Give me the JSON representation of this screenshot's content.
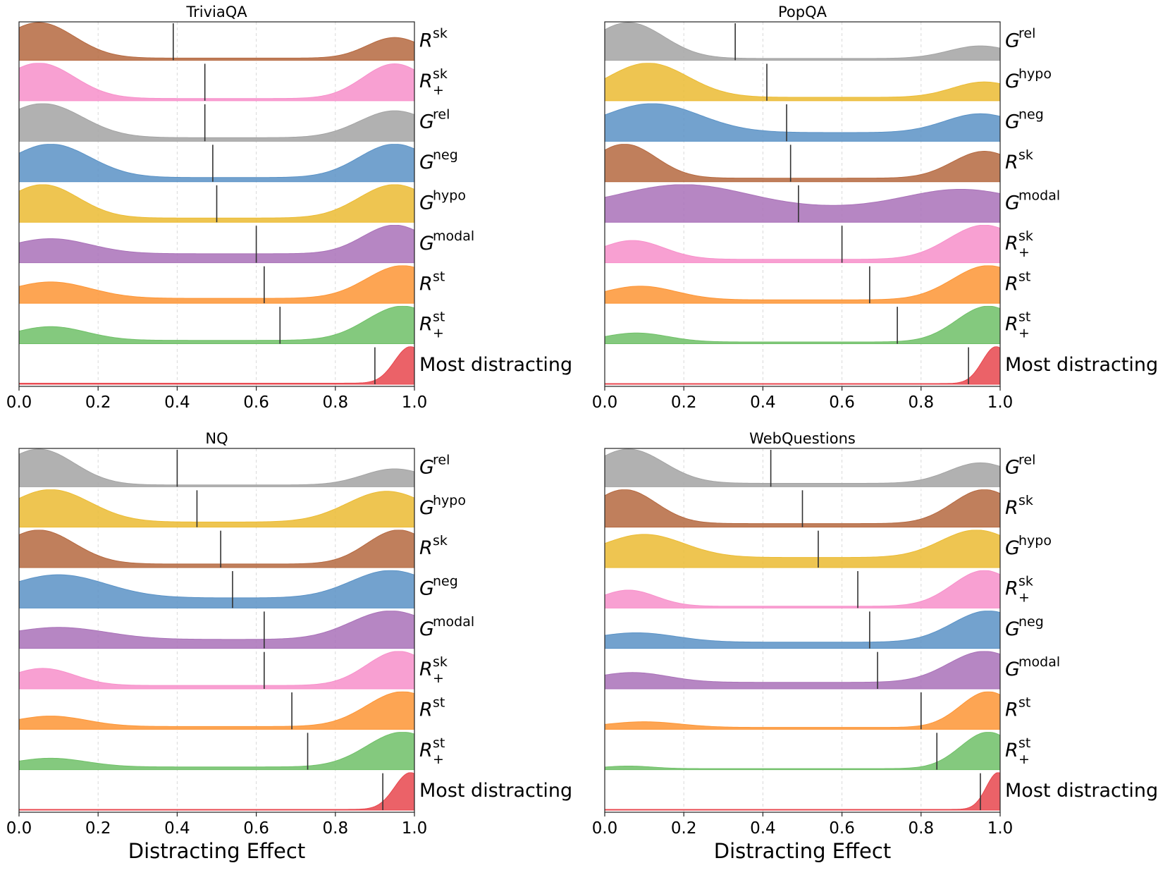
{
  "figure": {
    "shared_xlabel": "Distracting Effect"
  },
  "chart_data": [
    {
      "type": "ridgeline-density",
      "title": "TriviaQA",
      "xlabel": "",
      "xlim": [
        0,
        1
      ],
      "xticks": [
        "0.0",
        "0.2",
        "0.4",
        "0.6",
        "0.8",
        "1.0"
      ],
      "grid": "vertical dashed",
      "series": [
        {
          "base": "R",
          "sup": "sk",
          "sub": "",
          "color": "#b5683f",
          "median": 0.39,
          "peaks": [
            [
              0.05,
              0.09,
              1.0
            ],
            [
              0.95,
              0.07,
              0.58
            ]
          ],
          "floor": 0.06
        },
        {
          "base": "R",
          "sup": "sk",
          "sub": "+",
          "color": "#f78fca",
          "median": 0.47,
          "peaks": [
            [
              0.05,
              0.09,
              0.95
            ],
            [
              0.95,
              0.08,
              0.93
            ]
          ],
          "floor": 0.06
        },
        {
          "base": "G",
          "sup": "rel",
          "sub": "",
          "color": "#a3a3a3",
          "median": 0.47,
          "peaks": [
            [
              0.06,
              0.1,
              0.95
            ],
            [
              0.95,
              0.09,
              0.75
            ]
          ],
          "floor": 0.1
        },
        {
          "base": "G",
          "sup": "neg",
          "sub": "",
          "color": "#5a92c6",
          "median": 0.49,
          "peaks": [
            [
              0.08,
              0.1,
              0.95
            ],
            [
              0.95,
              0.09,
              0.95
            ]
          ],
          "floor": 0.12
        },
        {
          "base": "G",
          "sup": "hypo",
          "sub": "",
          "color": "#ebbb33",
          "median": 0.5,
          "peaks": [
            [
              0.06,
              0.09,
              0.95
            ],
            [
              0.95,
              0.09,
              0.95
            ]
          ],
          "floor": 0.12
        },
        {
          "base": "G",
          "sup": "modal",
          "sub": "",
          "color": "#a971b8",
          "median": 0.6,
          "peaks": [
            [
              0.08,
              0.1,
              0.5
            ],
            [
              0.95,
              0.08,
              0.95
            ]
          ],
          "floor": 0.3
        },
        {
          "base": "R",
          "sup": "st",
          "sub": "",
          "color": "#fd9535",
          "median": 0.62,
          "peaks": [
            [
              0.08,
              0.1,
              0.5
            ],
            [
              0.97,
              0.09,
              1.0
            ]
          ],
          "floor": 0.15
        },
        {
          "base": "R",
          "sup": "st",
          "sub": "+",
          "color": "#6fc067",
          "median": 0.66,
          "peaks": [
            [
              0.08,
              0.09,
              0.4
            ],
            [
              0.97,
              0.09,
              1.0
            ]
          ],
          "floor": 0.1
        },
        {
          "base": "Most distracting",
          "sup": "",
          "sub": "",
          "color": "#e8464d",
          "median": 0.9,
          "peaks": [
            [
              0.99,
              0.04,
              1.0
            ]
          ],
          "floor": 0.03
        }
      ]
    },
    {
      "type": "ridgeline-density",
      "title": "PopQA",
      "xlabel": "",
      "xlim": [
        0,
        1
      ],
      "xticks": [
        "0.0",
        "0.2",
        "0.4",
        "0.6",
        "0.8",
        "1.0"
      ],
      "grid": "vertical dashed",
      "series": [
        {
          "base": "G",
          "sup": "rel",
          "sub": "",
          "color": "#a3a3a3",
          "median": 0.33,
          "peaks": [
            [
              0.06,
              0.09,
              1.0
            ],
            [
              0.95,
              0.08,
              0.35
            ]
          ],
          "floor": 0.05
        },
        {
          "base": "G",
          "sup": "hypo",
          "sub": "",
          "color": "#ebbb33",
          "median": 0.41,
          "peaks": [
            [
              0.11,
              0.1,
              1.0
            ],
            [
              0.96,
              0.08,
              0.45
            ]
          ],
          "floor": 0.1
        },
        {
          "base": "G",
          "sup": "neg",
          "sub": "",
          "color": "#5a92c6",
          "median": 0.46,
          "peaks": [
            [
              0.12,
              0.12,
              1.0
            ],
            [
              0.95,
              0.09,
              0.65
            ]
          ],
          "floor": 0.3
        },
        {
          "base": "R",
          "sup": "sk",
          "sub": "",
          "color": "#b5683f",
          "median": 0.47,
          "peaks": [
            [
              0.05,
              0.08,
              0.95
            ],
            [
              0.96,
              0.08,
              0.75
            ]
          ],
          "floor": 0.1
        },
        {
          "base": "G",
          "sup": "modal",
          "sub": "",
          "color": "#a971b8",
          "median": 0.49,
          "peaks": [
            [
              0.2,
              0.16,
              1.0
            ],
            [
              0.9,
              0.14,
              0.8
            ]
          ],
          "floor": 0.6
        },
        {
          "base": "R",
          "sup": "sk",
          "sub": "+",
          "color": "#f78fca",
          "median": 0.6,
          "peaks": [
            [
              0.07,
              0.08,
              0.55
            ],
            [
              0.96,
              0.09,
              1.0
            ]
          ],
          "floor": 0.1
        },
        {
          "base": "R",
          "sup": "st",
          "sub": "",
          "color": "#fd9535",
          "median": 0.67,
          "peaks": [
            [
              0.09,
              0.09,
              0.4
            ],
            [
              0.97,
              0.09,
              1.0
            ]
          ],
          "floor": 0.1
        },
        {
          "base": "R",
          "sup": "st",
          "sub": "+",
          "color": "#6fc067",
          "median": 0.74,
          "peaks": [
            [
              0.08,
              0.08,
              0.25
            ],
            [
              0.97,
              0.08,
              1.0
            ]
          ],
          "floor": 0.05
        },
        {
          "base": "Most distracting",
          "sup": "",
          "sub": "",
          "color": "#e8464d",
          "median": 0.92,
          "peaks": [
            [
              0.99,
              0.035,
              1.0
            ]
          ],
          "floor": 0.02
        }
      ]
    },
    {
      "type": "ridgeline-density",
      "title": "NQ",
      "xlabel": "Distracting Effect",
      "xlim": [
        0,
        1
      ],
      "xticks": [
        "0.0",
        "0.2",
        "0.4",
        "0.6",
        "0.8",
        "1.0"
      ],
      "grid": "vertical dashed",
      "series": [
        {
          "base": "G",
          "sup": "rel",
          "sub": "",
          "color": "#a3a3a3",
          "median": 0.4,
          "peaks": [
            [
              0.05,
              0.09,
              1.0
            ],
            [
              0.95,
              0.08,
              0.45
            ]
          ],
          "floor": 0.05
        },
        {
          "base": "G",
          "sup": "hypo",
          "sub": "",
          "color": "#ebbb33",
          "median": 0.45,
          "peaks": [
            [
              0.08,
              0.1,
              0.95
            ],
            [
              0.93,
              0.1,
              0.9
            ]
          ],
          "floor": 0.15
        },
        {
          "base": "R",
          "sup": "sk",
          "sub": "",
          "color": "#b5683f",
          "median": 0.51,
          "peaks": [
            [
              0.05,
              0.09,
              0.95
            ],
            [
              0.96,
              0.08,
              0.95
            ]
          ],
          "floor": 0.1
        },
        {
          "base": "G",
          "sup": "neg",
          "sub": "",
          "color": "#5a92c6",
          "median": 0.54,
          "peaks": [
            [
              0.1,
              0.12,
              0.8
            ],
            [
              0.94,
              0.1,
              0.95
            ]
          ],
          "floor": 0.35
        },
        {
          "base": "G",
          "sup": "modal",
          "sub": "",
          "color": "#a971b8",
          "median": 0.62,
          "peaks": [
            [
              0.1,
              0.12,
              0.4
            ],
            [
              0.94,
              0.1,
              0.95
            ]
          ],
          "floor": 0.3
        },
        {
          "base": "R",
          "sup": "sk",
          "sub": "+",
          "color": "#f78fca",
          "median": 0.62,
          "peaks": [
            [
              0.06,
              0.08,
              0.5
            ],
            [
              0.96,
              0.08,
              1.0
            ]
          ],
          "floor": 0.1
        },
        {
          "base": "R",
          "sup": "st",
          "sub": "",
          "color": "#fd9535",
          "median": 0.69,
          "peaks": [
            [
              0.08,
              0.09,
              0.3
            ],
            [
              0.97,
              0.09,
              1.0
            ]
          ],
          "floor": 0.08
        },
        {
          "base": "R",
          "sup": "st",
          "sub": "+",
          "color": "#6fc067",
          "median": 0.73,
          "peaks": [
            [
              0.08,
              0.09,
              0.25
            ],
            [
              0.97,
              0.09,
              1.0
            ]
          ],
          "floor": 0.08
        },
        {
          "base": "Most distracting",
          "sup": "",
          "sub": "",
          "color": "#e8464d",
          "median": 0.92,
          "peaks": [
            [
              0.99,
              0.04,
              1.0
            ]
          ],
          "floor": 0.02
        }
      ]
    },
    {
      "type": "ridgeline-density",
      "title": "WebQuestions",
      "xlabel": "Distracting Effect",
      "xlim": [
        0,
        1
      ],
      "xticks": [
        "0.0",
        "0.2",
        "0.4",
        "0.6",
        "0.8",
        "1.0"
      ],
      "grid": "vertical dashed",
      "series": [
        {
          "base": "G",
          "sup": "rel",
          "sub": "",
          "color": "#a3a3a3",
          "median": 0.42,
          "peaks": [
            [
              0.06,
              0.09,
              1.0
            ],
            [
              0.95,
              0.08,
              0.6
            ]
          ],
          "floor": 0.1
        },
        {
          "base": "R",
          "sup": "sk",
          "sub": "",
          "color": "#b5683f",
          "median": 0.5,
          "peaks": [
            [
              0.05,
              0.08,
              0.95
            ],
            [
              0.96,
              0.08,
              0.95
            ]
          ],
          "floor": 0.1
        },
        {
          "base": "G",
          "sup": "hypo",
          "sub": "",
          "color": "#ebbb33",
          "median": 0.54,
          "peaks": [
            [
              0.1,
              0.1,
              0.8
            ],
            [
              0.94,
              0.09,
              0.95
            ]
          ],
          "floor": 0.35
        },
        {
          "base": "R",
          "sup": "sk",
          "sub": "+",
          "color": "#f78fca",
          "median": 0.64,
          "peaks": [
            [
              0.06,
              0.07,
              0.45
            ],
            [
              0.96,
              0.08,
              1.0
            ]
          ],
          "floor": 0.05
        },
        {
          "base": "G",
          "sup": "neg",
          "sub": "",
          "color": "#5a92c6",
          "median": 0.67,
          "peaks": [
            [
              0.08,
              0.1,
              0.3
            ],
            [
              0.97,
              0.09,
              1.0
            ]
          ],
          "floor": 0.2
        },
        {
          "base": "G",
          "sup": "modal",
          "sub": "",
          "color": "#a971b8",
          "median": 0.69,
          "peaks": [
            [
              0.07,
              0.09,
              0.3
            ],
            [
              0.96,
              0.09,
              0.95
            ]
          ],
          "floor": 0.2
        },
        {
          "base": "R",
          "sup": "st",
          "sub": "",
          "color": "#fd9535",
          "median": 0.8,
          "peaks": [
            [
              0.1,
              0.09,
              0.15
            ],
            [
              0.97,
              0.07,
              0.95
            ]
          ],
          "floor": 0.05
        },
        {
          "base": "R",
          "sup": "st",
          "sub": "+",
          "color": "#6fc067",
          "median": 0.84,
          "peaks": [
            [
              0.06,
              0.06,
              0.07
            ],
            [
              0.97,
              0.07,
              1.0
            ]
          ],
          "floor": 0.03
        },
        {
          "base": "Most distracting",
          "sup": "",
          "sub": "",
          "color": "#e8464d",
          "median": 0.95,
          "peaks": [
            [
              0.995,
              0.03,
              1.0
            ]
          ],
          "floor": 0.02
        }
      ]
    }
  ]
}
